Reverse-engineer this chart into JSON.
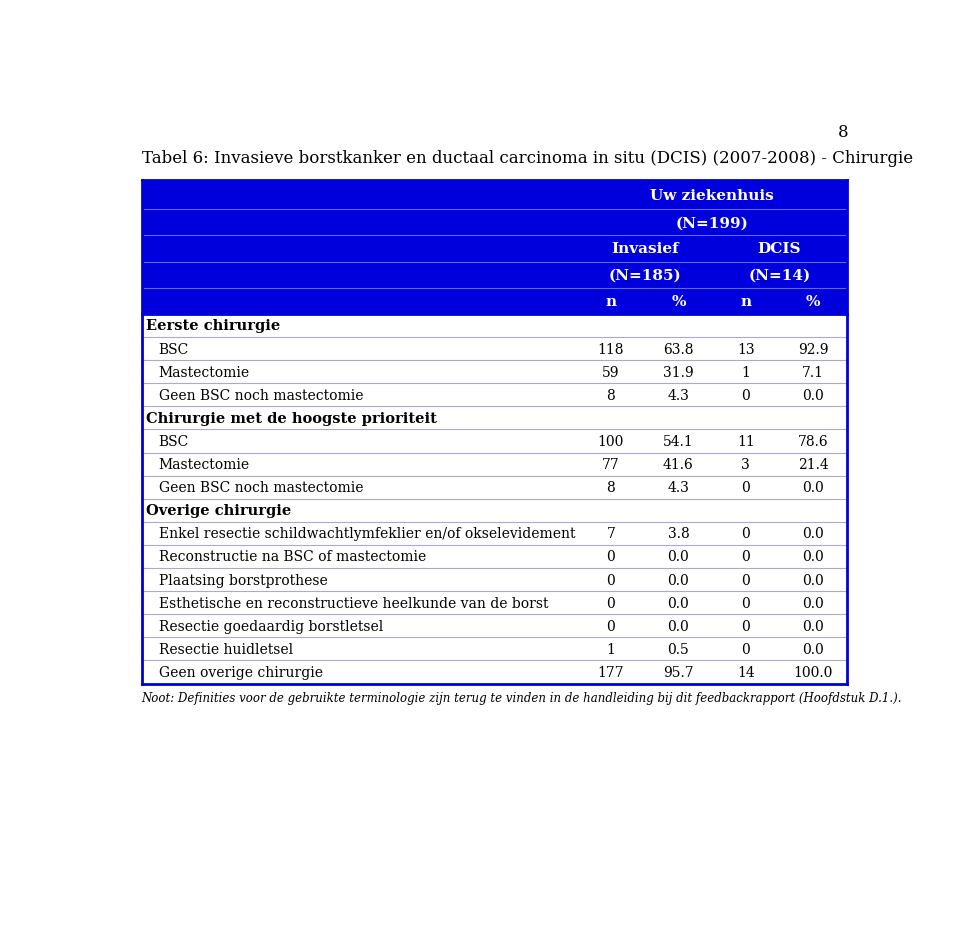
{
  "page_number": "8",
  "title": "Tabel 6: Invasieve borstkanker en ductaal carcinoma in situ (DCIS) (2007-2008) - Chirurgie",
  "header_row1": "Uw ziekenhuis",
  "header_row2": "(N=199)",
  "header_invasief": "Invasief",
  "header_invasief_n": "(N=185)",
  "header_dcis": "DCIS",
  "header_dcis_n": "(N=14)",
  "col_headers": [
    "n",
    "%",
    "n",
    "%"
  ],
  "sections": [
    {
      "section_title": "Eerste chirurgie",
      "rows": [
        {
          "label": "BSC",
          "indent": true,
          "values": [
            "118",
            "63.8",
            "13",
            "92.9"
          ]
        },
        {
          "label": "Mastectomie",
          "indent": true,
          "values": [
            "59",
            "31.9",
            "1",
            "7.1"
          ]
        },
        {
          "label": "Geen BSC noch mastectomie",
          "indent": true,
          "values": [
            "8",
            "4.3",
            "0",
            "0.0"
          ]
        }
      ]
    },
    {
      "section_title": "Chirurgie met de hoogste prioriteit",
      "rows": [
        {
          "label": "BSC",
          "indent": true,
          "values": [
            "100",
            "54.1",
            "11",
            "78.6"
          ]
        },
        {
          "label": "Mastectomie",
          "indent": true,
          "values": [
            "77",
            "41.6",
            "3",
            "21.4"
          ]
        },
        {
          "label": "Geen BSC noch mastectomie",
          "indent": true,
          "values": [
            "8",
            "4.3",
            "0",
            "0.0"
          ]
        }
      ]
    },
    {
      "section_title": "Overige chirurgie",
      "rows": [
        {
          "label": "Enkel resectie schildwachtlymfeklier en/of okselevidement",
          "indent": true,
          "values": [
            "7",
            "3.8",
            "0",
            "0.0"
          ]
        },
        {
          "label": "Reconstructie na BSC of mastectomie",
          "indent": true,
          "values": [
            "0",
            "0.0",
            "0",
            "0.0"
          ]
        },
        {
          "label": "Plaatsing borstprothese",
          "indent": true,
          "values": [
            "0",
            "0.0",
            "0",
            "0.0"
          ]
        },
        {
          "label": "Esthetische en reconstructieve heelkunde van de borst",
          "indent": true,
          "values": [
            "0",
            "0.0",
            "0",
            "0.0"
          ]
        },
        {
          "label": "Resectie goedaardig borstletsel",
          "indent": true,
          "values": [
            "0",
            "0.0",
            "0",
            "0.0"
          ]
        },
        {
          "label": "Resectie huidletsel",
          "indent": true,
          "values": [
            "1",
            "0.5",
            "0",
            "0.0"
          ]
        },
        {
          "label": "Geen overige chirurgie",
          "indent": true,
          "values": [
            "177",
            "95.7",
            "14",
            "100.0"
          ]
        }
      ]
    }
  ],
  "footnote": "Noot: Definities voor de gebruikte terminologie zijn terug te vinden in de handleiding bij dit feedbackrapport (Hoofdstuk D.1.).",
  "header_bg_color": "#0000DD",
  "header_divider_color": "#6666FF",
  "header_text_color": "#FFFFFF",
  "divider_color": "#AAAACC",
  "table_border_color": "#0000DD",
  "title_font_size": 12,
  "body_font_size": 10,
  "header_font_size": 11,
  "footnote_font_size": 8.5
}
